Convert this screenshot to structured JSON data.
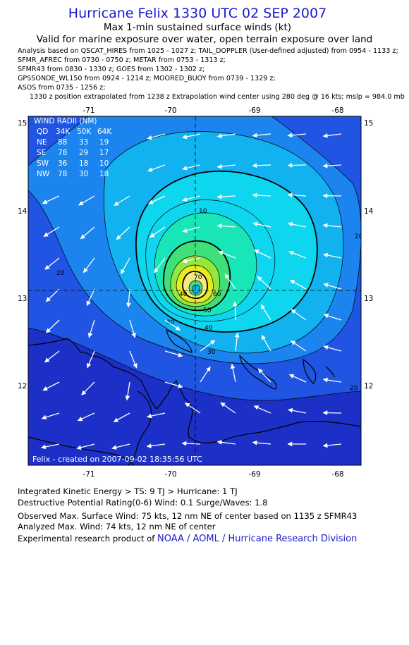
{
  "header": {
    "title": "Hurricane Felix 1330 UTC 02 SEP 2007",
    "subtitle": "Max 1-min sustained surface winds (kt)",
    "validity": "Valid for marine exposure over water, open terrain exposure over land"
  },
  "analysis_sources": [
    "Analysis based on  QSCAT_HIRES from 1025 - 1027 z;  TAIL_DOPPLER (User-defined adjusted) from 0954 - 1133 z;",
    "SFMR_AFREC from 0730 - 0750 z;  METAR from 0753 - 1313 z;",
    "SFMR43 from 0830 - 1330 z;  GOES from 1302 - 1302 z;",
    "GPSSONDE_WL150 from 0924 - 1214 z;  MOORED_BUOY from 0739 - 1329 z;",
    "ASOS from 0735 - 1256 z;"
  ],
  "position_note": "1330 z position extrapolated from 1238 z Extrapolation wind center using 280 deg @ 16 kts; mslp = 984.0 mb",
  "map": {
    "lon_ticks": [
      "-71",
      "-70",
      "-69",
      "-68"
    ],
    "lat_ticks": [
      "15",
      "14",
      "13",
      "12"
    ],
    "center": {
      "lon": -69.65,
      "lat": 13.08
    },
    "contour_labels": [
      "10",
      "20",
      "30",
      "40",
      "50",
      "60",
      "70",
      "20",
      "20",
      "30",
      "40"
    ],
    "credit": "Felix  -  created on  2007-09-02  18:35:56  UTC",
    "colors": {
      "level_0": "#1c30c8",
      "level_1": "#1f55e2",
      "level_2": "#1c84ee",
      "level_3": "#12b2f0",
      "level_4": "#0fd6ef",
      "level_5": "#18e6b8",
      "level_6": "#3fe07a",
      "level_7": "#93e840",
      "level_8": "#e6ec20",
      "level_9": "#f7ea80"
    },
    "wind_radii": {
      "title": "WIND RADII (NM)",
      "header": [
        "QD",
        "34K",
        "50K",
        "64K"
      ],
      "rows": [
        [
          "NE",
          "88",
          "33",
          "19"
        ],
        [
          "SE",
          "78",
          "29",
          "17"
        ],
        [
          "SW",
          "36",
          "18",
          "10"
        ],
        [
          "NW",
          "78",
          "30",
          "18"
        ]
      ]
    }
  },
  "footer": {
    "ike": "Integrated Kinetic Energy > TS: 9 TJ   > Hurricane: 1 TJ",
    "dpr": "Destructive Potential Rating(0-6)   Wind: 0.1 Surge/Waves: 1.8",
    "observed": "Observed Max. Surface Wind: 75 kts, 12 nm NE of center based on 1135 z SFMR43",
    "analyzed": "Analyzed Max. Wind: 74 kts, 12 nm NE of center",
    "product_prefix": "Experimental research product of ",
    "product_link": "NOAA / AOML / Hurricane Research Division"
  }
}
